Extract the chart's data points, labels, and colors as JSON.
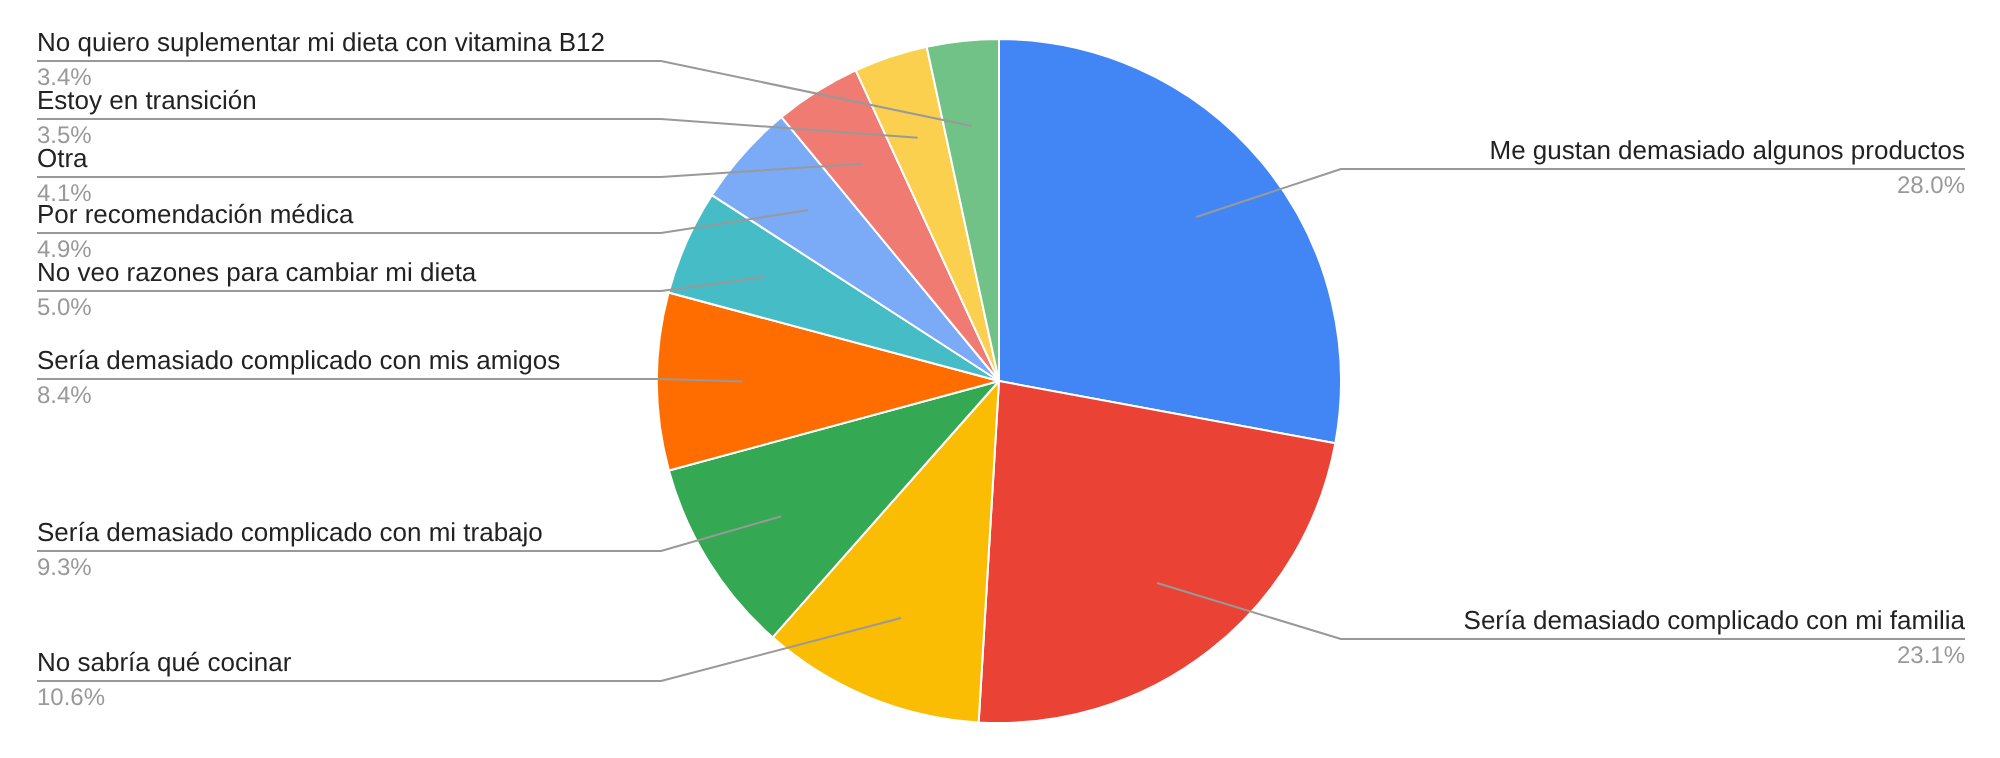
{
  "chart_data": {
    "type": "pie",
    "categories": [
      "Me gustan demasiado algunos productos",
      "Sería demasiado complicado con mi familia",
      "No sabría qué cocinar",
      "Sería demasiado complicado con mi trabajo",
      "Sería demasiado complicado con mis amigos",
      "No veo razones para cambiar mi dieta",
      "Por recomendación médica",
      "Otra",
      "Estoy en transición",
      "No quiero suplementar mi dieta con vitamina B12"
    ],
    "values": [
      28.0,
      23.1,
      10.6,
      9.3,
      8.4,
      5.0,
      4.9,
      4.1,
      3.5,
      3.4
    ],
    "value_labels": [
      "28.0%",
      "23.1%",
      "10.6%",
      "9.3%",
      "8.4%",
      "5.0%",
      "4.9%",
      "4.1%",
      "3.5%",
      "3.4%"
    ],
    "colors": [
      "#4285f4",
      "#ea4335",
      "#fbbc04",
      "#34a853",
      "#ff6d01",
      "#46bdc6",
      "#7baaf7",
      "#f07b72",
      "#fcd04f",
      "#71c287"
    ]
  }
}
